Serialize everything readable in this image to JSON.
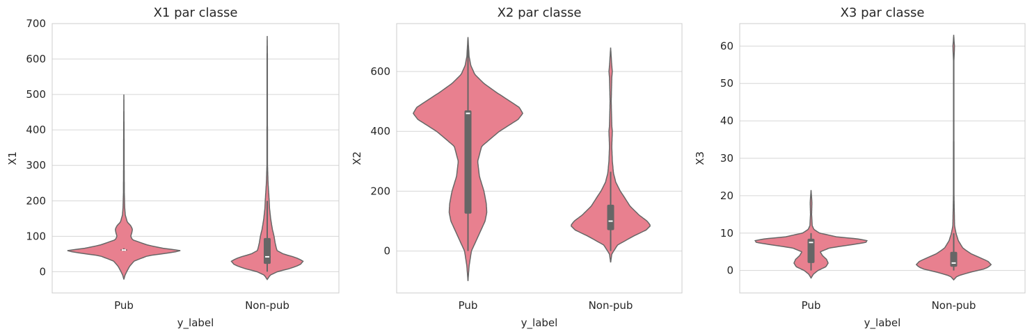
{
  "chart_data": [
    {
      "type": "violin",
      "title": "X1 par classe",
      "xlabel": "y_label",
      "ylabel": "X1",
      "categories": [
        "Pub",
        "Non-pub"
      ],
      "ylim": [
        -60,
        700
      ],
      "yticks": [
        0,
        100,
        200,
        300,
        400,
        500,
        600,
        700
      ],
      "grid": "horizontal",
      "color": "#e8808f",
      "edge_color": "#666666",
      "violins": [
        {
          "category": "Pub",
          "range": [
            -22,
            500
          ],
          "quartiles": [
            60,
            61,
            63
          ],
          "whiskers": [
            58,
            66
          ],
          "profile": [
            [
              -22,
              0
            ],
            [
              -10,
              0.02
            ],
            [
              0,
              0.05
            ],
            [
              15,
              0.1
            ],
            [
              30,
              0.18
            ],
            [
              45,
              0.42
            ],
            [
              55,
              0.88
            ],
            [
              60,
              1
            ],
            [
              65,
              0.72
            ],
            [
              75,
              0.42
            ],
            [
              90,
              0.15
            ],
            [
              100,
              0.12
            ],
            [
              110,
              0.14
            ],
            [
              120,
              0.15
            ],
            [
              130,
              0.12
            ],
            [
              140,
              0.06
            ],
            [
              160,
              0.025
            ],
            [
              180,
              0.015
            ],
            [
              220,
              0.008
            ],
            [
              300,
              0.005
            ],
            [
              400,
              0.004
            ],
            [
              500,
              0
            ]
          ]
        },
        {
          "category": "Non-pub",
          "range": [
            -22,
            665
          ],
          "quartiles": [
            22,
            42,
            95
          ],
          "whiskers": [
            0,
            200
          ],
          "profile": [
            [
              -22,
              0
            ],
            [
              -10,
              0.05
            ],
            [
              0,
              0.18
            ],
            [
              10,
              0.42
            ],
            [
              20,
              0.58
            ],
            [
              30,
              0.63
            ],
            [
              40,
              0.5
            ],
            [
              50,
              0.28
            ],
            [
              60,
              0.17
            ],
            [
              80,
              0.14
            ],
            [
              100,
              0.12
            ],
            [
              120,
              0.09
            ],
            [
              150,
              0.06
            ],
            [
              180,
              0.04
            ],
            [
              200,
              0.035
            ],
            [
              250,
              0.015
            ],
            [
              300,
              0.005
            ],
            [
              450,
              0.004
            ],
            [
              600,
              0.004
            ],
            [
              665,
              0
            ]
          ]
        }
      ]
    },
    {
      "type": "violin",
      "title": "X2 par classe",
      "xlabel": "y_label",
      "ylabel": "X2",
      "categories": [
        "Pub",
        "Non-pub"
      ],
      "ylim": [
        -140,
        760
      ],
      "yticks": [
        0,
        200,
        400,
        600
      ],
      "grid": "horizontal",
      "color": "#e8808f",
      "edge_color": "#666666",
      "violins": [
        {
          "category": "Pub",
          "range": [
            -100,
            715
          ],
          "quartiles": [
            125,
            460,
            470
          ],
          "whiskers": [
            0,
            700
          ],
          "profile": [
            [
              -100,
              0
            ],
            [
              -50,
              0.02
            ],
            [
              0,
              0.06
            ],
            [
              50,
              0.18
            ],
            [
              100,
              0.3
            ],
            [
              130,
              0.33
            ],
            [
              160,
              0.32
            ],
            [
              200,
              0.28
            ],
            [
              250,
              0.2
            ],
            [
              300,
              0.17
            ],
            [
              350,
              0.24
            ],
            [
              400,
              0.55
            ],
            [
              440,
              0.88
            ],
            [
              460,
              0.96
            ],
            [
              480,
              0.9
            ],
            [
              500,
              0.74
            ],
            [
              530,
              0.5
            ],
            [
              560,
              0.28
            ],
            [
              590,
              0.12
            ],
            [
              620,
              0.05
            ],
            [
              650,
              0.02
            ],
            [
              715,
              0
            ]
          ]
        },
        {
          "category": "Non-pub",
          "range": [
            -38,
            680
          ],
          "quartiles": [
            70,
            100,
            155
          ],
          "whiskers": [
            0,
            265
          ],
          "profile": [
            [
              -38,
              0
            ],
            [
              -10,
              0.02
            ],
            [
              20,
              0.12
            ],
            [
              50,
              0.4
            ],
            [
              70,
              0.62
            ],
            [
              85,
              0.7
            ],
            [
              100,
              0.64
            ],
            [
              120,
              0.5
            ],
            [
              150,
              0.34
            ],
            [
              180,
              0.24
            ],
            [
              200,
              0.17
            ],
            [
              230,
              0.09
            ],
            [
              260,
              0.05
            ],
            [
              300,
              0.03
            ],
            [
              350,
              0.02
            ],
            [
              400,
              0.03
            ],
            [
              420,
              0.02
            ],
            [
              500,
              0.01
            ],
            [
              580,
              0.02
            ],
            [
              600,
              0.03
            ],
            [
              620,
              0.02
            ],
            [
              680,
              0
            ]
          ]
        }
      ]
    },
    {
      "type": "violin",
      "title": "X3 par classe",
      "xlabel": "y_label",
      "ylabel": "X3",
      "categories": [
        "Pub",
        "Non-pub"
      ],
      "ylim": [
        -6,
        66
      ],
      "yticks": [
        0,
        10,
        20,
        30,
        40,
        50,
        60
      ],
      "grid": "horizontal",
      "color": "#e8808f",
      "edge_color": "#666666",
      "violins": [
        {
          "category": "Pub",
          "range": [
            -2,
            21.5
          ],
          "quartiles": [
            2,
            7.5,
            8.5
          ],
          "whiskers": [
            0,
            10
          ],
          "profile": [
            [
              -2,
              0
            ],
            [
              -1,
              0.04
            ],
            [
              0,
              0.12
            ],
            [
              1,
              0.26
            ],
            [
              2,
              0.3
            ],
            [
              3,
              0.27
            ],
            [
              4,
              0.2
            ],
            [
              5,
              0.16
            ],
            [
              6,
              0.32
            ],
            [
              7,
              0.75
            ],
            [
              7.5,
              0.96
            ],
            [
              8,
              0.98
            ],
            [
              8.5,
              0.8
            ],
            [
              9,
              0.45
            ],
            [
              10,
              0.15
            ],
            [
              11,
              0.05
            ],
            [
              12,
              0.02
            ],
            [
              15,
              0.01
            ],
            [
              18,
              0.015
            ],
            [
              19,
              0.012
            ],
            [
              21.5,
              0
            ]
          ]
        },
        {
          "category": "Non-pub",
          "range": [
            -2.5,
            63
          ],
          "quartiles": [
            1,
            2,
            5
          ],
          "whiskers": [
            0,
            10
          ],
          "profile": [
            [
              -2.5,
              0
            ],
            [
              -1.5,
              0.06
            ],
            [
              -0.5,
              0.28
            ],
            [
              0.5,
              0.56
            ],
            [
              1.5,
              0.66
            ],
            [
              2.5,
              0.6
            ],
            [
              3.5,
              0.45
            ],
            [
              4.5,
              0.3
            ],
            [
              6,
              0.16
            ],
            [
              8,
              0.08
            ],
            [
              10,
              0.04
            ],
            [
              12,
              0.015
            ],
            [
              20,
              0.005
            ],
            [
              40,
              0.004
            ],
            [
              56,
              0.004
            ],
            [
              59,
              0.012
            ],
            [
              60,
              0.014
            ],
            [
              61,
              0.008
            ],
            [
              63,
              0
            ]
          ]
        }
      ]
    }
  ]
}
